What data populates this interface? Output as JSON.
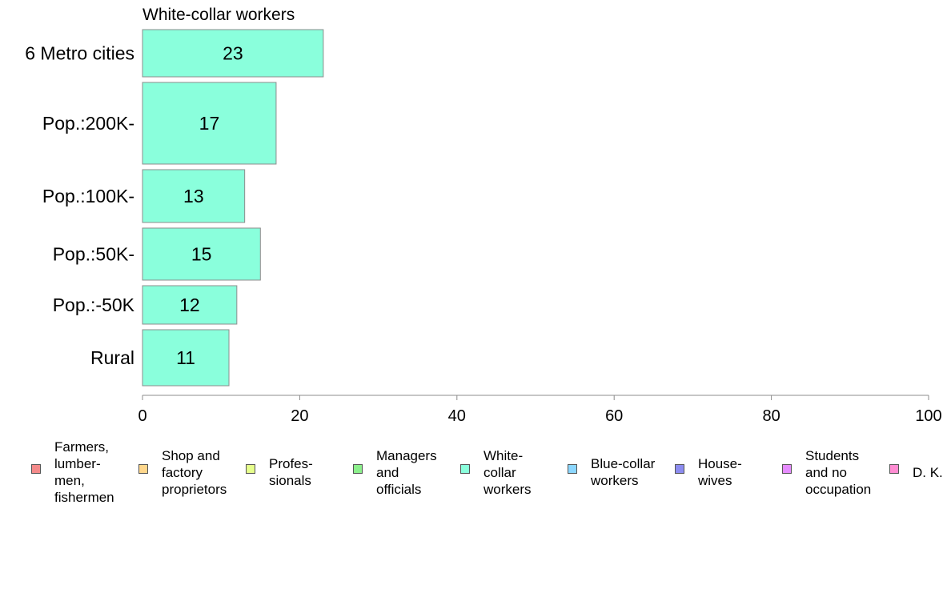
{
  "chart_data": {
    "type": "bar",
    "orientation": "horizontal",
    "title": "White-collar workers",
    "categories": [
      "6 Metro cities",
      "Pop.:200K-",
      "Pop.:100K-",
      "Pop.:50K-",
      "Pop.:-50K",
      "Rural"
    ],
    "values": [
      23,
      17,
      13,
      15,
      12,
      11
    ],
    "xlabel": "",
    "ylabel": "",
    "xlim": [
      0,
      100
    ],
    "xticks": [
      0,
      20,
      40,
      60,
      80,
      100
    ],
    "grid": false,
    "legend_position": "bottom",
    "bar_color": "#8affdc",
    "bar_edge_color": "#8c8c8c",
    "legend": [
      {
        "label": "Farmers,\nlumber-\nmen,\nfishermen",
        "color": "#f48a8a"
      },
      {
        "label": "Shop and\nfactory\nproprietors",
        "color": "#ffd78c"
      },
      {
        "label": "Profes-\nsionals",
        "color": "#e6ff8c"
      },
      {
        "label": "Managers\nand\nofficials",
        "color": "#8cf08c"
      },
      {
        "label": "White-\ncollar\nworkers",
        "color": "#8affdc"
      },
      {
        "label": "Blue-collar\nworkers",
        "color": "#8cd7ff"
      },
      {
        "label": "House-\nwives",
        "color": "#8c8cf0"
      },
      {
        "label": "Students\nand no\noccupation",
        "color": "#e68cff"
      },
      {
        "label": "D. K.",
        "color": "#ff8cd2"
      }
    ]
  }
}
